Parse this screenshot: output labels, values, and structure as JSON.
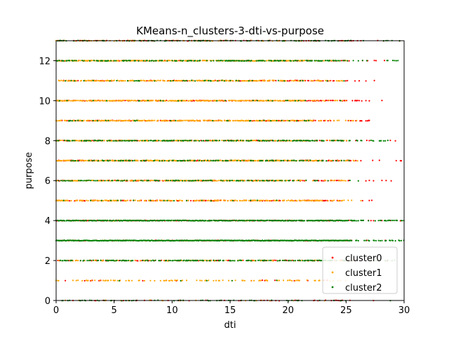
{
  "chart_data": {
    "type": "scatter",
    "title": "KMeans-n_clusters-3-dti-vs-purpose",
    "xlabel": "dti",
    "ylabel": "purpose",
    "xlim": [
      0,
      30
    ],
    "ylim": [
      0,
      13
    ],
    "xticks": [
      0,
      5,
      10,
      15,
      20,
      25,
      30
    ],
    "yticks": [
      0,
      2,
      4,
      6,
      8,
      10,
      12
    ],
    "grid": false,
    "legend_position": "lower-right",
    "series": [
      {
        "name": "cluster0",
        "color": "#ff0000",
        "rows": [
          {
            "y": 0,
            "x_range": [
              0,
              29.6
            ],
            "density": 0.12
          },
          {
            "y": 1,
            "x_range": [
              0.5,
              25.5
            ],
            "density": 0.05
          },
          {
            "y": 2,
            "x_range": [
              0,
              30
            ],
            "density": 0.25
          },
          {
            "y": 3,
            "x_range": [
              0,
              30
            ],
            "density": 0.3
          },
          {
            "y": 4,
            "x_range": [
              0,
              30
            ],
            "density": 0.45
          },
          {
            "y": 5,
            "x_range": [
              0,
              27.5
            ],
            "density": 0.35
          },
          {
            "y": 6,
            "x_range": [
              0,
              29.8
            ],
            "density": 0.3
          },
          {
            "y": 7,
            "x_range": [
              0,
              30
            ],
            "density": 0.35
          },
          {
            "y": 8,
            "x_range": [
              0,
              29.8
            ],
            "density": 0.3
          },
          {
            "y": 9,
            "x_range": [
              0,
              27.8
            ],
            "density": 0.35
          },
          {
            "y": 10,
            "x_range": [
              0,
              29.6
            ],
            "density": 0.35
          },
          {
            "y": 11,
            "x_range": [
              0,
              28.2
            ],
            "density": 0.25
          },
          {
            "y": 12,
            "x_range": [
              0,
              29.8
            ],
            "density": 0.2
          },
          {
            "y": 13,
            "x_range": [
              0,
              30
            ],
            "density": 0.2
          }
        ]
      },
      {
        "name": "cluster1",
        "color": "#ffa500",
        "rows": [
          {
            "y": 0,
            "x_range": [
              0,
              25
            ],
            "density": 0.08
          },
          {
            "y": 1,
            "x_range": [
              0,
              25
            ],
            "density": 0.3
          },
          {
            "y": 2,
            "x_range": [
              0,
              25
            ],
            "density": 0.35
          },
          {
            "y": 3,
            "x_range": [
              0,
              25
            ],
            "density": 0.05
          },
          {
            "y": 4,
            "x_range": [
              0,
              25
            ],
            "density": 0.15
          },
          {
            "y": 5,
            "x_range": [
              0,
              26.8
            ],
            "density": 0.6
          },
          {
            "y": 6,
            "x_range": [
              0,
              25
            ],
            "density": 0.6
          },
          {
            "y": 7,
            "x_range": [
              0,
              26.3
            ],
            "density": 0.75
          },
          {
            "y": 8,
            "x_range": [
              0,
              25.2
            ],
            "density": 0.6
          },
          {
            "y": 9,
            "x_range": [
              0,
              26.2
            ],
            "density": 0.7
          },
          {
            "y": 10,
            "x_range": [
              0,
              25.2
            ],
            "density": 0.8
          },
          {
            "y": 11,
            "x_range": [
              0,
              24.7
            ],
            "density": 0.65
          },
          {
            "y": 12,
            "x_range": [
              0,
              25.2
            ],
            "density": 0.75
          },
          {
            "y": 13,
            "x_range": [
              0,
              25
            ],
            "density": 0.2
          }
        ]
      },
      {
        "name": "cluster2",
        "color": "#008000",
        "rows": [
          {
            "y": 0,
            "x_range": [
              0,
              29.6
            ],
            "density": 0.15
          },
          {
            "y": 1,
            "x_range": [
              0,
              25
            ],
            "density": 0.03
          },
          {
            "y": 2,
            "x_range": [
              0,
              29.8
            ],
            "density": 0.45
          },
          {
            "y": 3,
            "x_range": [
              0,
              30
            ],
            "density": 1.0
          },
          {
            "y": 4,
            "x_range": [
              0,
              30
            ],
            "density": 0.9
          },
          {
            "y": 5,
            "x_range": [
              0,
              25
            ],
            "density": 0.05
          },
          {
            "y": 6,
            "x_range": [
              0,
              26.4
            ],
            "density": 0.35
          },
          {
            "y": 7,
            "x_range": [
              0,
              25.5
            ],
            "density": 0.35
          },
          {
            "y": 8,
            "x_range": [
              0,
              29.2
            ],
            "density": 0.5
          },
          {
            "y": 9,
            "x_range": [
              0,
              25
            ],
            "density": 0.1
          },
          {
            "y": 10,
            "x_range": [
              0,
              25
            ],
            "density": 0.05
          },
          {
            "y": 11,
            "x_range": [
              0,
              25
            ],
            "density": 0.15
          },
          {
            "y": 12,
            "x_range": [
              0,
              29.6
            ],
            "density": 0.45
          },
          {
            "y": 13,
            "x_range": [
              0,
              30
            ],
            "density": 0.25
          }
        ]
      }
    ]
  }
}
